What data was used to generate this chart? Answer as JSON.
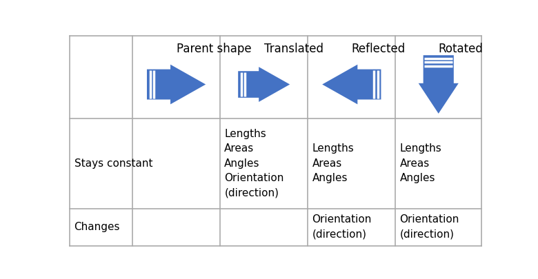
{
  "headers": [
    "",
    "Parent shape",
    "Translated",
    "Reflected",
    "Rotated"
  ],
  "row_labels": [
    "Stays constant",
    "Changes"
  ],
  "stays_constant_cols": [
    2,
    3,
    4
  ],
  "stays_constant_texts": [
    "Lengths\nAreas\nAngles\nOrientation\n(direction)",
    "Lengths\nAreas\nAngles",
    "Lengths\nAreas\nAngles"
  ],
  "changes_cols": [
    3,
    4
  ],
  "changes_texts": [
    "Orientation\n(direction)",
    "Orientation\n(direction)"
  ],
  "col_bounds": [
    5,
    122,
    286,
    450,
    614,
    775
  ],
  "row_bounds": [
    5,
    160,
    330,
    400
  ],
  "arrow_color": "#4472C4",
  "text_color": "#000000",
  "border_color": "#aaaaaa",
  "bg_color": "#ffffff",
  "header_fontsize": 12,
  "body_fontsize": 11
}
